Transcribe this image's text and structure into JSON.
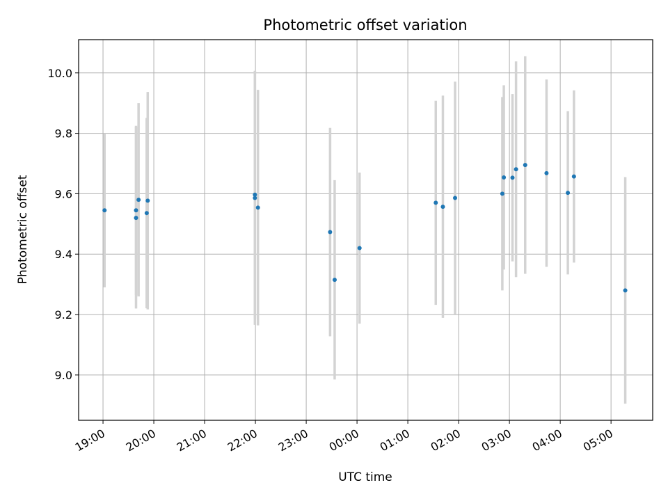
{
  "chart_data": {
    "type": "scatter",
    "title": "Photometric offset variation",
    "xlabel": "UTC time",
    "ylabel": "Photometric offset",
    "x_unit": "UTC time (hours; values beyond 24 continue into the next day)",
    "xlim": [
      18.52,
      29.82
    ],
    "ylim": [
      8.85,
      10.11
    ],
    "grid": true,
    "x_ticks": [
      {
        "value": 19,
        "label": "19:00"
      },
      {
        "value": 20,
        "label": "20:00"
      },
      {
        "value": 21,
        "label": "21:00"
      },
      {
        "value": 22,
        "label": "22:00"
      },
      {
        "value": 23,
        "label": "23:00"
      },
      {
        "value": 24,
        "label": "00:00"
      },
      {
        "value": 25,
        "label": "01:00"
      },
      {
        "value": 26,
        "label": "02:00"
      },
      {
        "value": 27,
        "label": "03:00"
      },
      {
        "value": 28,
        "label": "04:00"
      },
      {
        "value": 29,
        "label": "05:00"
      }
    ],
    "y_ticks": [
      {
        "value": 9.0,
        "label": "9.0"
      },
      {
        "value": 9.2,
        "label": "9.2"
      },
      {
        "value": 9.4,
        "label": "9.4"
      },
      {
        "value": 9.6,
        "label": "9.6"
      },
      {
        "value": 9.8,
        "label": "9.8"
      },
      {
        "value": 10.0,
        "label": "10.0"
      }
    ],
    "marker_color": "#1f77b4",
    "errorbar_color": "#d3d3d3",
    "points": [
      {
        "x": 19.03,
        "y": 9.545,
        "yerr": 0.255
      },
      {
        "x": 19.65,
        "y": 9.545,
        "yerr": 0.28
      },
      {
        "x": 19.65,
        "y": 9.52,
        "yerr": 0.3
      },
      {
        "x": 19.7,
        "y": 9.58,
        "yerr": 0.32
      },
      {
        "x": 19.86,
        "y": 9.536,
        "yerr": 0.315
      },
      {
        "x": 19.88,
        "y": 9.577,
        "yerr": 0.36
      },
      {
        "x": 21.99,
        "y": 9.597,
        "yerr": 0.41
      },
      {
        "x": 21.99,
        "y": 9.586,
        "yerr": 0.42
      },
      {
        "x": 22.05,
        "y": 9.554,
        "yerr": 0.39
      },
      {
        "x": 23.47,
        "y": 9.473,
        "yerr": 0.345
      },
      {
        "x": 23.56,
        "y": 9.315,
        "yerr": 0.33
      },
      {
        "x": 24.05,
        "y": 9.42,
        "yerr": 0.25
      },
      {
        "x": 25.55,
        "y": 9.57,
        "yerr": 0.338
      },
      {
        "x": 25.69,
        "y": 9.557,
        "yerr": 0.368
      },
      {
        "x": 25.93,
        "y": 9.586,
        "yerr": 0.385
      },
      {
        "x": 26.86,
        "y": 9.6,
        "yerr": 0.32
      },
      {
        "x": 26.89,
        "y": 9.654,
        "yerr": 0.305
      },
      {
        "x": 27.06,
        "y": 9.653,
        "yerr": 0.277
      },
      {
        "x": 27.13,
        "y": 9.681,
        "yerr": 0.357
      },
      {
        "x": 27.31,
        "y": 9.695,
        "yerr": 0.36
      },
      {
        "x": 27.73,
        "y": 9.668,
        "yerr": 0.31
      },
      {
        "x": 28.15,
        "y": 9.603,
        "yerr": 0.27
      },
      {
        "x": 28.27,
        "y": 9.657,
        "yerr": 0.285
      },
      {
        "x": 29.28,
        "y": 9.28,
        "yerr": 0.375
      }
    ]
  }
}
